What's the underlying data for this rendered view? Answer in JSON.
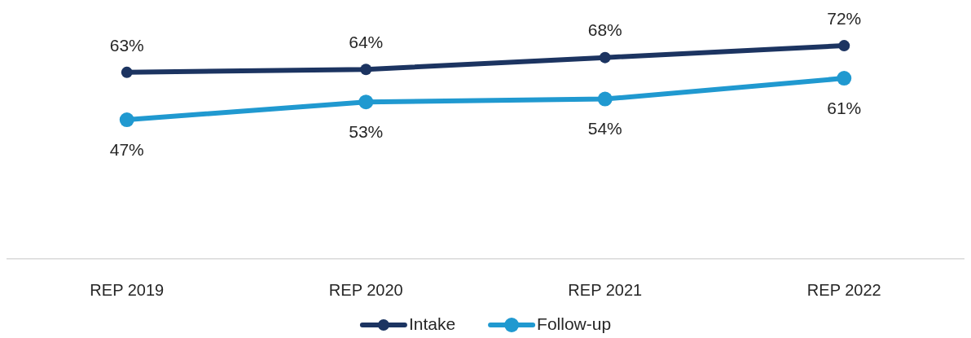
{
  "chart_data": {
    "type": "line",
    "categories": [
      "REP 2019",
      "REP 2020",
      "REP 2021",
      "REP 2022"
    ],
    "series": [
      {
        "name": "Intake",
        "color": "#1c3461",
        "values": [
          63,
          64,
          68,
          72
        ],
        "value_labels": [
          "63%",
          "64%",
          "68%",
          "72%"
        ]
      },
      {
        "name": "Follow-up",
        "color": "#2099d0",
        "values": [
          47,
          53,
          54,
          61
        ],
        "value_labels": [
          "47%",
          "53%",
          "54%",
          "61%"
        ]
      }
    ],
    "tick_labels": "x",
    "legend": "bottom",
    "marker": "circle",
    "line_style": "solid"
  }
}
